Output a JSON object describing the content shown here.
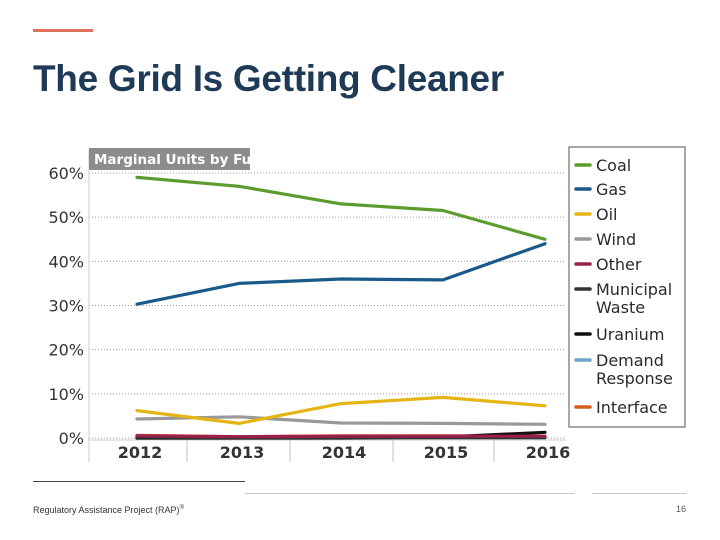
{
  "slide": {
    "title": "The Grid Is Getting Cleaner",
    "footer": "Regulatory Assistance Project (RAP)",
    "footer_mark": "®",
    "page_number": "16",
    "accent_color": "#e0705e",
    "title_color": "#1f3a56"
  },
  "chart_data": {
    "type": "line",
    "title": "Marginal Units by Fuel",
    "xlabel": "",
    "ylabel": "",
    "x": [
      "2012",
      "2013",
      "2014",
      "2015",
      "2016"
    ],
    "ylim": [
      0,
      60
    ],
    "yticks": [
      0,
      10,
      20,
      30,
      40,
      50,
      60
    ],
    "ytick_labels": [
      "0%",
      "10%",
      "20%",
      "30%",
      "40%",
      "50%",
      "60%"
    ],
    "grid": true,
    "legend_position": "right",
    "series": [
      {
        "name": "Coal",
        "color": "#5c9c2f",
        "values": [
          59,
          57,
          53,
          51.5,
          45
        ]
      },
      {
        "name": "Gas",
        "color": "#1a5a8a",
        "values": [
          30.3,
          35,
          36,
          35.8,
          44
        ]
      },
      {
        "name": "Oil",
        "color": "#e5b415",
        "values": [
          6.2,
          3.3,
          7.8,
          9.2,
          7.3
        ]
      },
      {
        "name": "Wind",
        "color": "#999999",
        "values": [
          4.3,
          4.8,
          3.4,
          3.3,
          3.1
        ]
      },
      {
        "name": "Other",
        "color": "#9a1f4a",
        "values": [
          0.5,
          0.3,
          0.4,
          0.4,
          0.4
        ]
      },
      {
        "name": "Municipal Waste",
        "color": "#333333",
        "values": [
          0.2,
          0.1,
          0.1,
          0.1,
          0.1
        ]
      },
      {
        "name": "Uranium",
        "color": "#111111",
        "values": [
          0,
          0,
          0,
          0.2,
          1.3
        ]
      },
      {
        "name": "Demand Response",
        "color": "#6fa5c9",
        "values": [
          0.1,
          0.1,
          0.1,
          0.1,
          0.1
        ]
      },
      {
        "name": "Interface",
        "color": "#d95a1b",
        "values": [
          0.6,
          0.3,
          0.5,
          0.5,
          0.4
        ]
      }
    ],
    "legend_labels": [
      [
        "Coal"
      ],
      [
        "Gas"
      ],
      [
        "Oil"
      ],
      [
        "Wind"
      ],
      [
        "Other"
      ],
      [
        "Municipal",
        "Waste"
      ],
      [
        "Uranium"
      ],
      [
        "Demand",
        "Response"
      ],
      [
        "Interface"
      ]
    ]
  }
}
